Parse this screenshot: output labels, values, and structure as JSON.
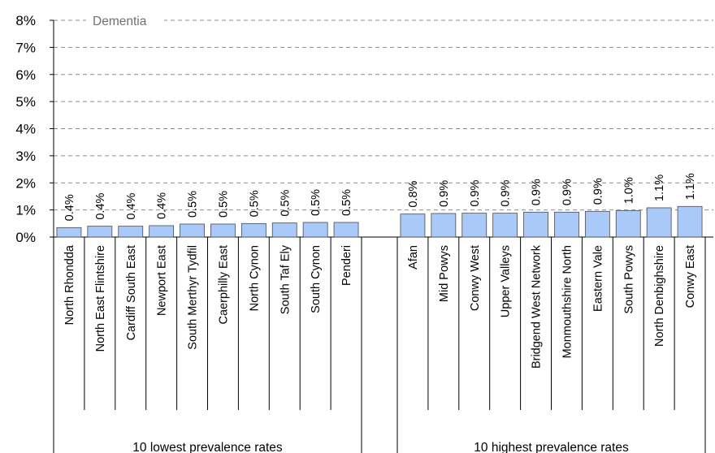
{
  "chart_data": {
    "type": "bar",
    "title": "Dementia",
    "xlabel": "",
    "ylabel": "",
    "ylim": [
      0,
      8
    ],
    "yticks": [
      "0%",
      "1%",
      "2%",
      "3%",
      "4%",
      "5%",
      "6%",
      "7%",
      "8%"
    ],
    "grid": true,
    "bar_color": "#a9c9f9",
    "groups": [
      {
        "label": "10 lowest prevalence rates",
        "categories": [
          "North Rhondda",
          "North East Flintshire",
          "Cardiff South East",
          "Newport East",
          "South Merthyr Tydfil",
          "Caerphilly East",
          "North Cynon",
          "South Taf Ely",
          "South Cynon",
          "Penderi"
        ],
        "values": [
          0.35,
          0.4,
          0.4,
          0.42,
          0.48,
          0.48,
          0.5,
          0.52,
          0.54,
          0.54
        ],
        "data_labels": [
          "0.4%",
          "0.4%",
          "0.4%",
          "0.4%",
          "0.5%",
          "0.5%",
          "0.5%",
          "0.5%",
          "0.5%",
          "0.5%"
        ]
      },
      {
        "label": "10 highest prevalence rates",
        "categories": [
          "Afan",
          "Mid Powys",
          "Conwy West",
          "Upper Valleys",
          "Bridgend West Network",
          "Monmouthshire North",
          "Eastern Vale",
          "South Powys",
          "North Denbighshire",
          "Conwy East"
        ],
        "values": [
          0.85,
          0.87,
          0.88,
          0.88,
          0.92,
          0.92,
          0.95,
          0.98,
          1.08,
          1.13
        ],
        "data_labels": [
          "0.8%",
          "0.9%",
          "0.9%",
          "0.9%",
          "0.9%",
          "0.9%",
          "0.9%",
          "1.0%",
          "1.1%",
          "1.1%"
        ]
      }
    ]
  }
}
